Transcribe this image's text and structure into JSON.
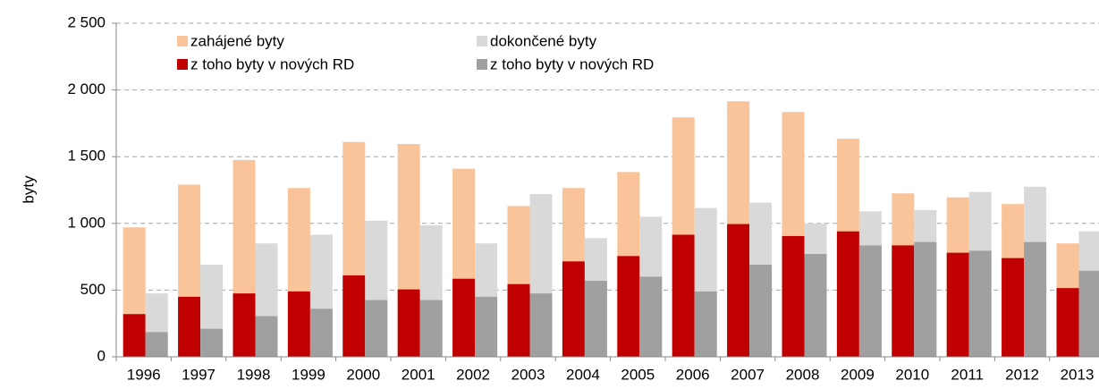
{
  "chart_data": {
    "type": "bar",
    "y_label": "byty",
    "categories": [
      "1996",
      "1997",
      "1998",
      "1999",
      "2000",
      "2001",
      "2002",
      "2003",
      "2004",
      "2005",
      "2006",
      "2007",
      "2008",
      "2009",
      "2010",
      "2011",
      "2012",
      "2013"
    ],
    "series": [
      {
        "name": "zahájené byty",
        "color": "#f9c49a",
        "values": [
          970,
          1290,
          1475,
          1265,
          1610,
          1595,
          1410,
          1130,
          1265,
          1385,
          1795,
          1915,
          1835,
          1635,
          1225,
          1195,
          1145,
          850
        ]
      },
      {
        "name": "z toho byty v nových RD",
        "color": "#c00000",
        "values": [
          320,
          450,
          475,
          490,
          610,
          505,
          585,
          545,
          715,
          755,
          915,
          995,
          905,
          940,
          835,
          780,
          740,
          515
        ]
      },
      {
        "name": "dokončené byty",
        "color": "#d9d9d9",
        "values": [
          475,
          690,
          850,
          915,
          1020,
          985,
          850,
          1220,
          890,
          1050,
          1115,
          1155,
          1000,
          1090,
          1100,
          1235,
          1275,
          940
        ]
      },
      {
        "name": "z toho byty v nových RD",
        "color": "#a0a0a0",
        "values": [
          185,
          210,
          305,
          360,
          425,
          425,
          450,
          475,
          570,
          600,
          490,
          690,
          770,
          835,
          860,
          795,
          860,
          645
        ]
      }
    ],
    "ylim": [
      0,
      2500
    ],
    "yticks": [
      0,
      500,
      {
        "value": 1000,
        "label": "1 000"
      },
      {
        "value": 1500,
        "label": "1 500"
      },
      {
        "value": 2000,
        "label": "2 000"
      },
      {
        "value": 2500,
        "label": "2 500"
      }
    ],
    "grid": true
  }
}
